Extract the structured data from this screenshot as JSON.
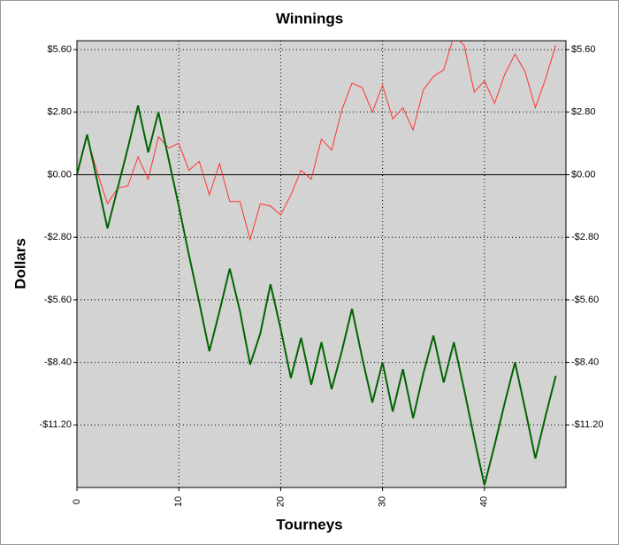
{
  "chart_data": {
    "type": "line",
    "title": "Winnings",
    "xlabel": "Tourneys",
    "ylabel": "Dollars",
    "x": [
      0,
      1,
      2,
      3,
      4,
      5,
      6,
      7,
      8,
      9,
      10,
      11,
      12,
      13,
      14,
      15,
      16,
      17,
      18,
      19,
      20,
      21,
      22,
      23,
      24,
      25,
      26,
      27,
      28,
      29,
      30,
      31,
      32,
      33,
      34,
      35,
      36,
      37,
      38,
      39,
      40,
      41,
      42,
      43,
      44,
      45,
      46,
      47
    ],
    "series": [
      {
        "color": "#ff3333",
        "width": 1,
        "values": [
          0,
          1.7,
          0.1,
          -1.3,
          -0.6,
          -0.5,
          0.8,
          -0.2,
          1.7,
          1.2,
          1.4,
          0.2,
          0.6,
          -0.9,
          0.5,
          -1.2,
          -1.2,
          -2.9,
          -1.3,
          -1.4,
          -1.8,
          -0.9,
          0.2,
          -0.2,
          1.6,
          1.1,
          2.9,
          4.1,
          3.9,
          2.8,
          4.0,
          2.5,
          3.0,
          2.0,
          3.8,
          4.4,
          4.7,
          6.2,
          5.8,
          3.7,
          4.2,
          3.2,
          4.5,
          5.4,
          4.6,
          3.0,
          4.3,
          5.8
        ]
      },
      {
        "color": "#006400",
        "width": 2,
        "values": [
          0,
          1.8,
          -0.3,
          -2.4,
          -0.6,
          1.2,
          3.1,
          1.0,
          2.8,
          0.7,
          -1.4,
          -3.6,
          -5.7,
          -7.9,
          -6.1,
          -4.2,
          -6.1,
          -8.5,
          -7.1,
          -4.9,
          -6.9,
          -9.1,
          -7.3,
          -9.4,
          -7.5,
          -9.6,
          -7.9,
          -6.0,
          -8.2,
          -10.2,
          -8.4,
          -10.6,
          -8.7,
          -10.9,
          -8.9,
          -7.2,
          -9.3,
          -7.5,
          -9.6,
          -11.8,
          -13.9,
          -12.1,
          -10.2,
          -8.4,
          -10.5,
          -12.7,
          -10.8,
          -9.0
        ]
      }
    ],
    "xlim": [
      0,
      48
    ],
    "xticks": [
      0,
      10,
      20,
      30,
      40
    ],
    "ylim": [
      -14,
      6
    ],
    "yticks": [
      {
        "value": -11.2,
        "label": "-$11.20"
      },
      {
        "value": -8.4,
        "label": "-$8.40"
      },
      {
        "value": -5.6,
        "label": "-$5.60"
      },
      {
        "value": -2.8,
        "label": "-$2.80"
      },
      {
        "value": 0,
        "label": "$0.00"
      },
      {
        "value": 2.8,
        "label": "$2.80"
      },
      {
        "value": 5.6,
        "label": "$5.60"
      }
    ],
    "grid": true,
    "background": "#d3d3d3"
  }
}
